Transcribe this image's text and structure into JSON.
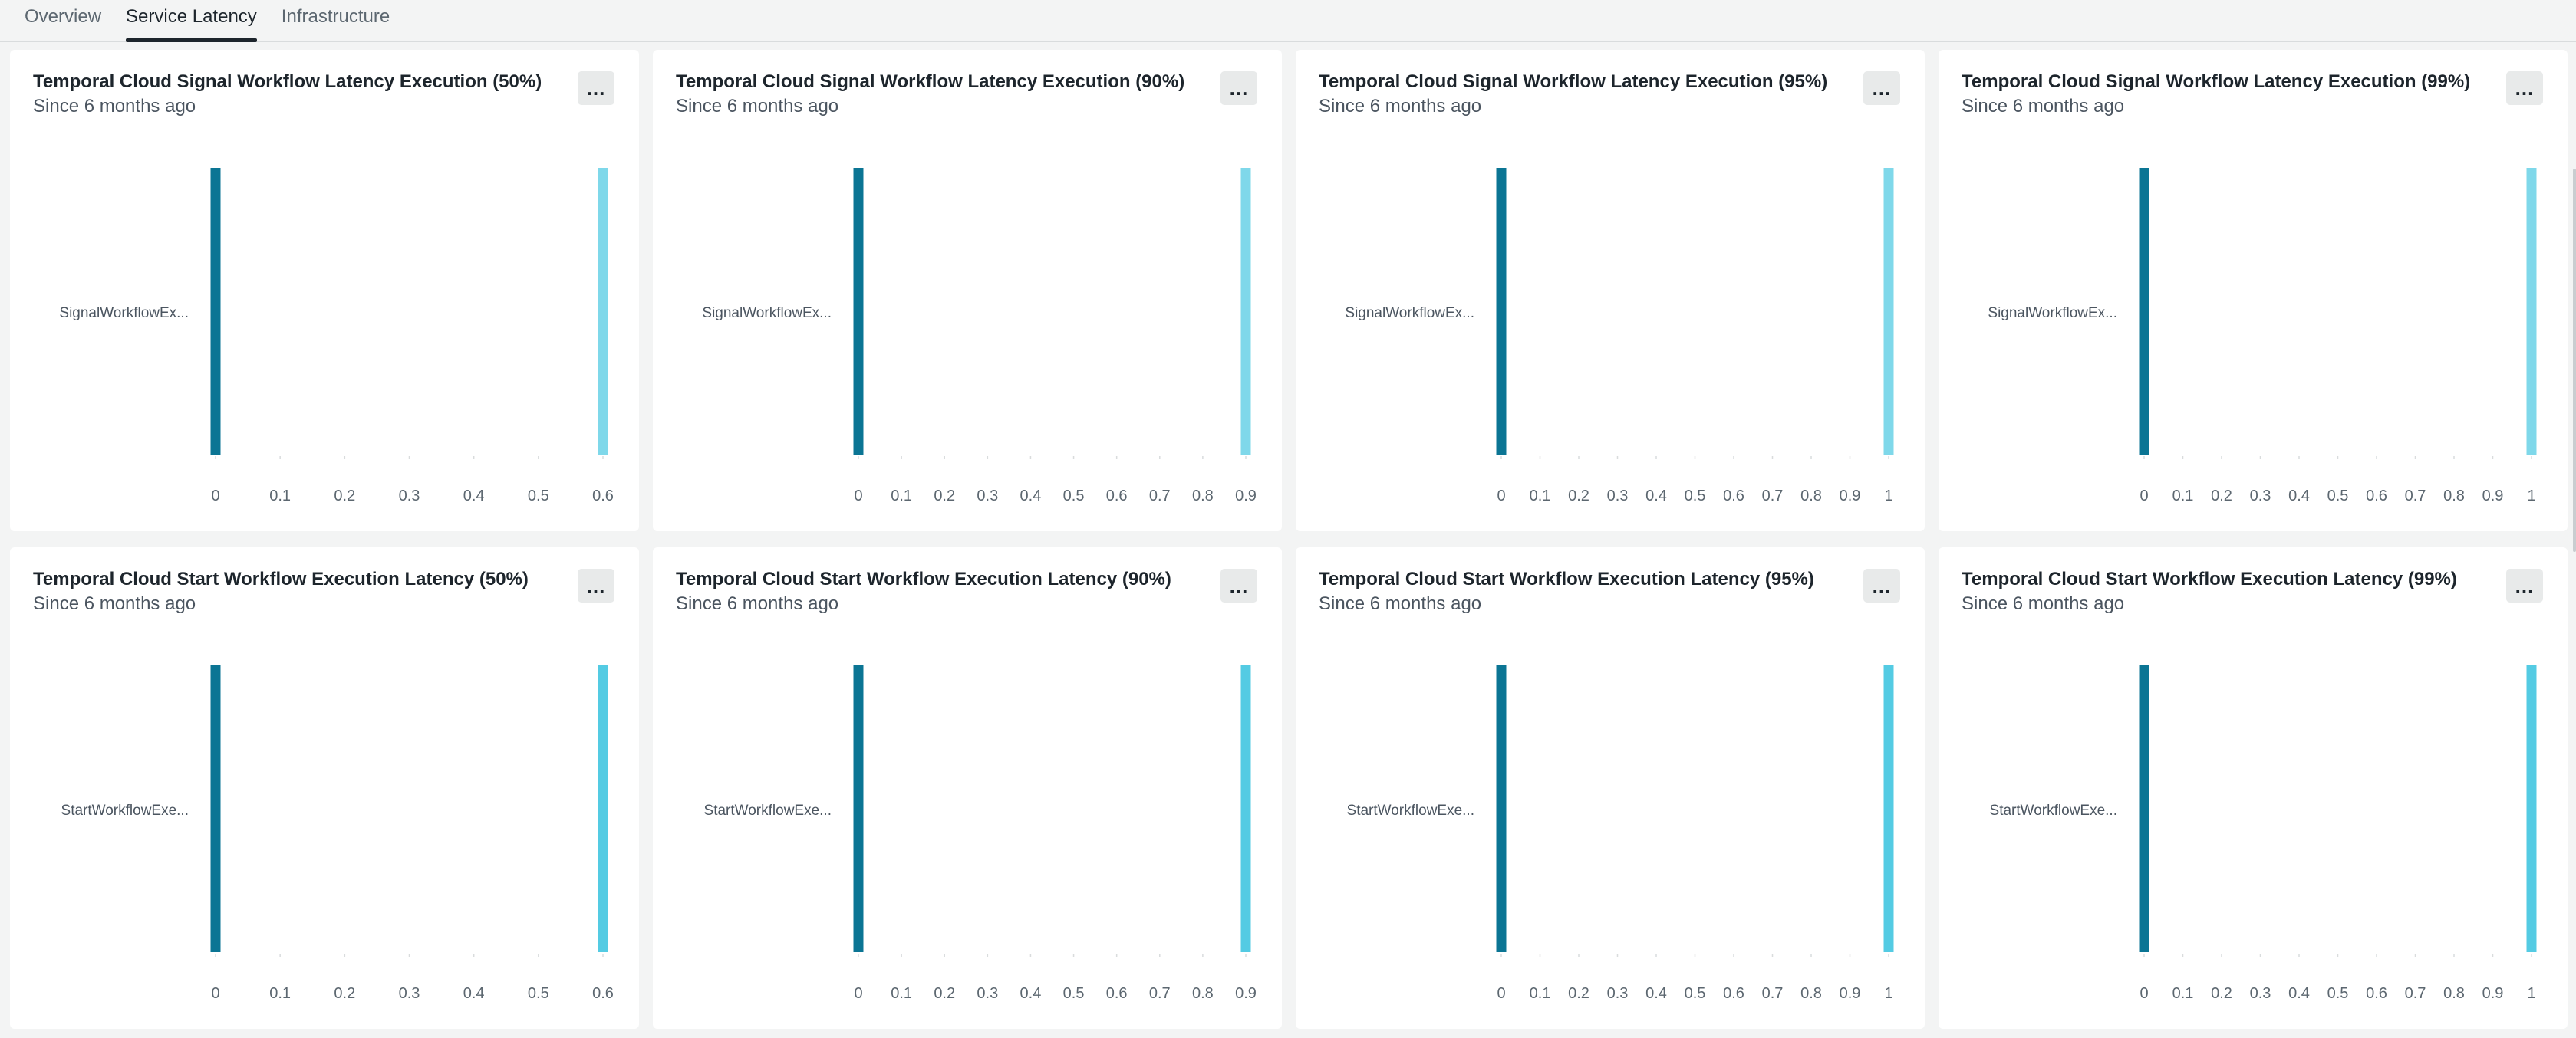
{
  "tabs": [
    {
      "label": "Overview",
      "active": false
    },
    {
      "label": "Service Latency",
      "active": true
    },
    {
      "label": "Infrastructure",
      "active": false
    }
  ],
  "menu_label": "...",
  "colors": {
    "bar_dark": "#0b7594",
    "bar_light_signal": "#7fd8ea",
    "bar_light_start": "#54cbe3",
    "tick_text": "#5c6770"
  },
  "panels": [
    {
      "title": "Temporal Cloud Signal Workflow Latency Execution (50%)",
      "subtitle": "Since 6 months ago",
      "chart_data": {
        "type": "bar",
        "orientation": "horizontal",
        "categories": [
          "SignalWorkflowEx..."
        ],
        "x_ticks": [
          "0",
          "0.1",
          "0.2",
          "0.3",
          "0.4",
          "0.5",
          "0.6"
        ],
        "xlim": [
          0,
          0.6
        ],
        "series": [
          {
            "values": [
              0
            ]
          },
          {
            "values": [
              0.6
            ]
          }
        ],
        "grid": false
      }
    },
    {
      "title": "Temporal Cloud Signal Workflow Latency Execution (90%)",
      "subtitle": "Since 6 months ago",
      "chart_data": {
        "type": "bar",
        "orientation": "horizontal",
        "categories": [
          "SignalWorkflowEx..."
        ],
        "x_ticks": [
          "0",
          "0.1",
          "0.2",
          "0.3",
          "0.4",
          "0.5",
          "0.6",
          "0.7",
          "0.8",
          "0.9"
        ],
        "xlim": [
          0,
          0.9
        ],
        "series": [
          {
            "values": [
              0
            ]
          },
          {
            "values": [
              0.9
            ]
          }
        ],
        "grid": false
      }
    },
    {
      "title": "Temporal Cloud Signal Workflow Latency Execution (95%)",
      "subtitle": "Since 6 months ago",
      "chart_data": {
        "type": "bar",
        "orientation": "horizontal",
        "categories": [
          "SignalWorkflowEx..."
        ],
        "x_ticks": [
          "0",
          "0.1",
          "0.2",
          "0.3",
          "0.4",
          "0.5",
          "0.6",
          "0.7",
          "0.8",
          "0.9",
          "1"
        ],
        "xlim": [
          0,
          1
        ],
        "series": [
          {
            "values": [
              0
            ]
          },
          {
            "values": [
              1
            ]
          }
        ],
        "grid": false
      }
    },
    {
      "title": "Temporal Cloud Signal Workflow Latency Execution (99%)",
      "subtitle": "Since 6 months ago",
      "chart_data": {
        "type": "bar",
        "orientation": "horizontal",
        "categories": [
          "SignalWorkflowEx..."
        ],
        "x_ticks": [
          "0",
          "0.1",
          "0.2",
          "0.3",
          "0.4",
          "0.5",
          "0.6",
          "0.7",
          "0.8",
          "0.9",
          "1"
        ],
        "xlim": [
          0,
          1
        ],
        "series": [
          {
            "values": [
              0
            ]
          },
          {
            "values": [
              1
            ]
          }
        ],
        "grid": false
      }
    },
    {
      "title": "Temporal Cloud Start Workflow Execution Latency (50%)",
      "subtitle": "Since 6 months ago",
      "chart_data": {
        "type": "bar",
        "orientation": "horizontal",
        "categories": [
          "StartWorkflowExe..."
        ],
        "x_ticks": [
          "0",
          "0.1",
          "0.2",
          "0.3",
          "0.4",
          "0.5",
          "0.6"
        ],
        "xlim": [
          0,
          0.6
        ],
        "series": [
          {
            "values": [
              0
            ]
          },
          {
            "values": [
              0.6
            ]
          }
        ],
        "grid": false
      }
    },
    {
      "title": "Temporal Cloud Start Workflow Execution Latency (90%)",
      "subtitle": "Since 6 months ago",
      "chart_data": {
        "type": "bar",
        "orientation": "horizontal",
        "categories": [
          "StartWorkflowExe..."
        ],
        "x_ticks": [
          "0",
          "0.1",
          "0.2",
          "0.3",
          "0.4",
          "0.5",
          "0.6",
          "0.7",
          "0.8",
          "0.9"
        ],
        "xlim": [
          0,
          0.9
        ],
        "series": [
          {
            "values": [
              0
            ]
          },
          {
            "values": [
              0.9
            ]
          }
        ],
        "grid": false
      }
    },
    {
      "title": "Temporal Cloud Start Workflow Execution Latency (95%)",
      "subtitle": "Since 6 months ago",
      "chart_data": {
        "type": "bar",
        "orientation": "horizontal",
        "categories": [
          "StartWorkflowExe..."
        ],
        "x_ticks": [
          "0",
          "0.1",
          "0.2",
          "0.3",
          "0.4",
          "0.5",
          "0.6",
          "0.7",
          "0.8",
          "0.9",
          "1"
        ],
        "xlim": [
          0,
          1
        ],
        "series": [
          {
            "values": [
              0
            ]
          },
          {
            "values": [
              1
            ]
          }
        ],
        "grid": false
      }
    },
    {
      "title": "Temporal Cloud Start Workflow Execution Latency (99%)",
      "subtitle": "Since 6 months ago",
      "chart_data": {
        "type": "bar",
        "orientation": "horizontal",
        "categories": [
          "StartWorkflowExe..."
        ],
        "x_ticks": [
          "0",
          "0.1",
          "0.2",
          "0.3",
          "0.4",
          "0.5",
          "0.6",
          "0.7",
          "0.8",
          "0.9",
          "1"
        ],
        "xlim": [
          0,
          1
        ],
        "series": [
          {
            "values": [
              0
            ]
          },
          {
            "values": [
              1
            ]
          }
        ],
        "grid": false
      }
    }
  ]
}
